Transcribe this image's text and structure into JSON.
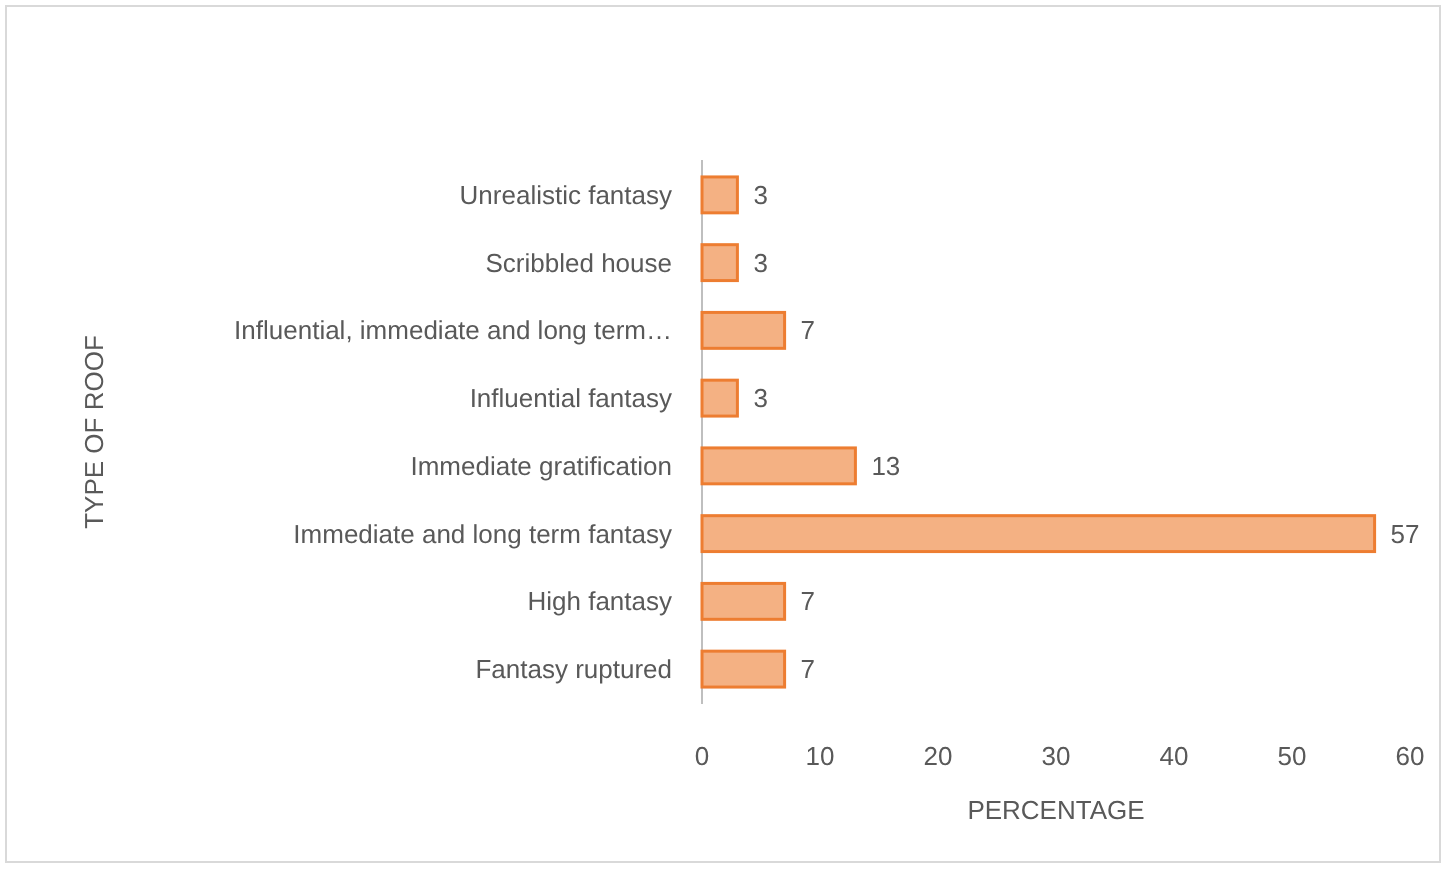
{
  "chart_data": {
    "type": "bar",
    "orientation": "horizontal",
    "xlabel": "PERCENTAGE",
    "ylabel": "TYPE OF ROOF",
    "categories": [
      "Unrealistic fantasy",
      "Scribbled house",
      "Influential, immediate and long term…",
      "Influential fantasy",
      "Immediate gratification",
      "Immediate and long term fantasy",
      "High fantasy",
      "Fantasy ruptured"
    ],
    "values": [
      3,
      3,
      7,
      3,
      13,
      57,
      7,
      7
    ],
    "color": "#f4b183",
    "xlim": [
      0,
      60
    ],
    "xticks": [
      0,
      10,
      20,
      30,
      40,
      50,
      60
    ],
    "data_labels": true
  }
}
